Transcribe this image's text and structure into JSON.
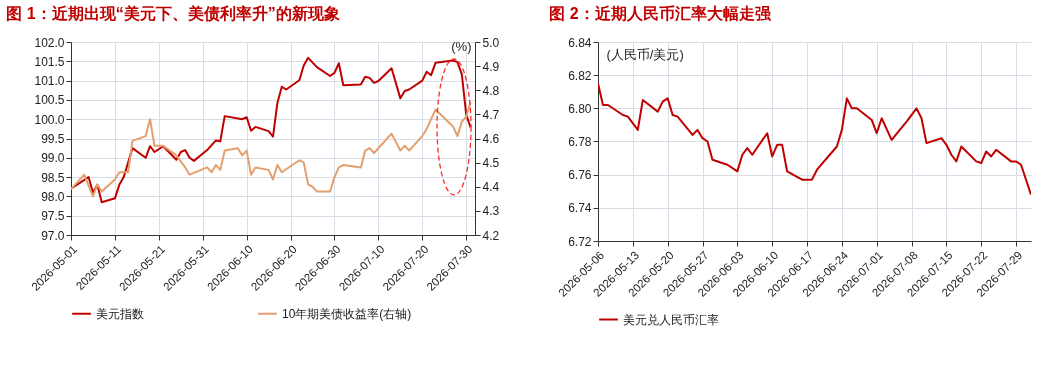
{
  "chart_data": [
    {
      "type": "line",
      "title": "图 1：近期出现“美元下、美债利率升”的新现象",
      "y2label": "(%)",
      "xlim": [
        "2026-05-01",
        "2026-08-01"
      ],
      "xticks": [
        "2026-05-01",
        "2026-05-11",
        "2026-05-21",
        "2026-05-31",
        "2026-06-10",
        "2026-06-20",
        "2026-06-30",
        "2026-07-10",
        "2026-07-20",
        "2026-07-30"
      ],
      "ylim": [
        97,
        102
      ],
      "yticks": [
        {
          "value": 97,
          "label": "97.0"
        },
        97.5,
        {
          "value": 98,
          "label": "98.0"
        },
        98.5,
        {
          "value": 99,
          "label": "99.0"
        },
        99.5,
        {
          "value": 100,
          "label": "100.0"
        },
        100.5,
        {
          "value": 101,
          "label": "101.0"
        },
        101.5,
        {
          "value": 102,
          "label": "102.0"
        }
      ],
      "y2lim": [
        4.2,
        5.0
      ],
      "y2ticks": [
        4.2,
        4.3,
        4.4,
        4.5,
        4.6,
        4.7,
        4.8,
        4.9,
        {
          "value": 5,
          "label": "5.0"
        }
      ],
      "grid": true,
      "legend": "bottom",
      "series": [
        {
          "name": "美元指数",
          "color": "#c00000",
          "x": [
            "2026-05-01",
            "2026-05-05",
            "2026-05-06",
            "2026-05-07",
            "2026-05-08",
            "2026-05-11",
            "2026-05-12",
            "2026-05-13",
            "2026-05-15",
            "2026-05-18",
            "2026-05-19",
            "2026-05-20",
            "2026-05-22",
            "2026-05-25",
            "2026-05-26",
            "2026-05-27",
            "2026-05-28",
            "2026-05-29",
            "2026-06-01",
            "2026-06-03",
            "2026-06-04",
            "2026-06-05",
            "2026-06-09",
            "2026-06-10",
            "2026-06-11",
            "2026-06-12",
            "2026-06-15",
            "2026-06-16",
            "2026-06-17",
            "2026-06-18",
            "2026-06-19",
            "2026-06-22",
            "2026-06-23",
            "2026-06-24",
            "2026-06-26",
            "2026-06-29",
            "2026-06-30",
            "2026-07-01",
            "2026-07-02",
            "2026-07-06",
            "2026-07-07",
            "2026-07-08",
            "2026-07-09",
            "2026-07-10",
            "2026-07-13",
            "2026-07-15",
            "2026-07-16",
            "2026-07-17",
            "2026-07-20",
            "2026-07-21",
            "2026-07-22",
            "2026-07-23",
            "2026-07-27",
            "2026-07-28",
            "2026-07-29",
            "2026-07-30",
            "2026-07-31"
          ],
          "values": [
            98.2,
            98.5,
            98.1,
            98.3,
            97.85,
            97.95,
            98.3,
            98.5,
            99.25,
            99.0,
            99.3,
            99.15,
            99.3,
            98.95,
            99.15,
            99.2,
            99.0,
            98.92,
            99.2,
            99.45,
            99.43,
            100.08,
            100.0,
            100.05,
            99.7,
            99.8,
            99.69,
            99.55,
            100.42,
            100.84,
            100.77,
            101.01,
            101.39,
            101.59,
            101.35,
            101.12,
            101.2,
            101.45,
            100.88,
            100.9,
            101.1,
            101.07,
            100.94,
            100.99,
            101.32,
            100.54,
            100.73,
            100.77,
            101.0,
            101.23,
            101.14,
            101.46,
            101.52,
            101.48,
            101.16,
            100.12,
            99.79
          ]
        },
        {
          "name": "10年期美债收益率(右轴)",
          "color": "#e3a06e",
          "axis": "y2",
          "x": [
            "2026-05-01",
            "2026-05-04",
            "2026-05-06",
            "2026-05-07",
            "2026-05-08",
            "2026-05-11",
            "2026-05-12",
            "2026-05-14",
            "2026-05-15",
            "2026-05-18",
            "2026-05-19",
            "2026-05-20",
            "2026-05-22",
            "2026-05-25",
            "2026-05-27",
            "2026-05-28",
            "2026-06-01",
            "2026-06-02",
            "2026-06-03",
            "2026-06-04",
            "2026-06-05",
            "2026-06-08",
            "2026-06-09",
            "2026-06-10",
            "2026-06-11",
            "2026-06-12",
            "2026-06-15",
            "2026-06-16",
            "2026-06-17",
            "2026-06-18",
            "2026-06-22",
            "2026-06-23",
            "2026-06-24",
            "2026-06-25",
            "2026-06-26",
            "2026-06-29",
            "2026-06-30",
            "2026-07-01",
            "2026-07-02",
            "2026-07-06",
            "2026-07-07",
            "2026-07-08",
            "2026-07-09",
            "2026-07-13",
            "2026-07-15",
            "2026-07-16",
            "2026-07-17",
            "2026-07-20",
            "2026-07-21",
            "2026-07-23",
            "2026-07-27",
            "2026-07-28",
            "2026-07-29",
            "2026-07-30",
            "2026-07-31"
          ],
          "values": [
            4.39,
            4.45,
            4.36,
            4.41,
            4.38,
            4.43,
            4.46,
            4.46,
            4.59,
            4.61,
            4.68,
            4.57,
            4.57,
            4.53,
            4.48,
            4.45,
            4.48,
            4.46,
            4.49,
            4.47,
            4.55,
            4.56,
            4.53,
            4.55,
            4.45,
            4.48,
            4.47,
            4.43,
            4.49,
            4.46,
            4.51,
            4.5,
            4.41,
            4.4,
            4.38,
            4.38,
            4.44,
            4.48,
            4.49,
            4.48,
            4.55,
            4.56,
            4.54,
            4.62,
            4.55,
            4.57,
            4.55,
            4.61,
            4.64,
            4.72,
            4.65,
            4.61,
            4.67,
            4.69,
            4.75
          ]
        }
      ]
    },
    {
      "type": "line",
      "title": "图 2：近期人民币汇率大幅走强",
      "ylabel": "(人民币/美元)",
      "xlim": [
        "2026-05-06",
        "2026-08-01"
      ],
      "xticks": [
        "2026-05-06",
        "2026-05-13",
        "2026-05-20",
        "2026-05-27",
        "2026-06-03",
        "2026-06-10",
        "2026-06-17",
        "2026-06-24",
        "2026-07-01",
        "2026-07-08",
        "2026-07-15",
        "2026-07-22",
        "2026-07-29"
      ],
      "ylim": [
        6.72,
        6.84
      ],
      "yticks": [
        6.72,
        6.74,
        6.76,
        6.78,
        {
          "value": 6.8,
          "label": "6.80"
        },
        6.82,
        6.84
      ],
      "grid": true,
      "legend": "bottom",
      "series": [
        {
          "name": "美元兑人民币汇率",
          "color": "#c00000",
          "x": [
            "2026-05-06",
            "2026-05-07",
            "2026-05-08",
            "2026-05-11",
            "2026-05-12",
            "2026-05-14",
            "2026-05-15",
            "2026-05-18",
            "2026-05-19",
            "2026-05-20",
            "2026-05-21",
            "2026-05-22",
            "2026-05-25",
            "2026-05-26",
            "2026-05-27",
            "2026-05-28",
            "2026-05-29",
            "2026-06-01",
            "2026-06-03",
            "2026-06-04",
            "2026-06-05",
            "2026-06-06",
            "2026-06-09",
            "2026-06-10",
            "2026-06-11",
            "2026-06-12",
            "2026-06-13",
            "2026-06-16",
            "2026-06-18",
            "2026-06-19",
            "2026-06-23",
            "2026-06-24",
            "2026-06-25",
            "2026-06-26",
            "2026-06-27",
            "2026-06-30",
            "2026-07-01",
            "2026-07-02",
            "2026-07-04",
            "2026-07-07",
            "2026-07-09",
            "2026-07-10",
            "2026-07-11",
            "2026-07-14",
            "2026-07-15",
            "2026-07-16",
            "2026-07-17",
            "2026-07-18",
            "2026-07-21",
            "2026-07-22",
            "2026-07-23",
            "2026-07-24",
            "2026-07-25",
            "2026-07-28",
            "2026-07-29",
            "2026-07-30",
            "2026-08-01"
          ],
          "values": [
            6.815,
            6.802,
            6.802,
            6.796,
            6.795,
            6.787,
            6.805,
            6.798,
            6.804,
            6.806,
            6.796,
            6.795,
            6.784,
            6.787,
            6.782,
            6.78,
            6.769,
            6.766,
            6.762,
            6.772,
            6.776,
            6.772,
            6.785,
            6.771,
            6.778,
            6.778,
            6.762,
            6.757,
            6.757,
            6.763,
            6.777,
            6.787,
            6.806,
            6.8,
            6.8,
            6.793,
            6.785,
            6.794,
            6.781,
            6.792,
            6.8,
            6.794,
            6.779,
            6.782,
            6.778,
            6.772,
            6.768,
            6.777,
            6.768,
            6.767,
            6.774,
            6.771,
            6.775,
            6.768,
            6.768,
            6.766,
            6.748
          ]
        }
      ]
    }
  ]
}
